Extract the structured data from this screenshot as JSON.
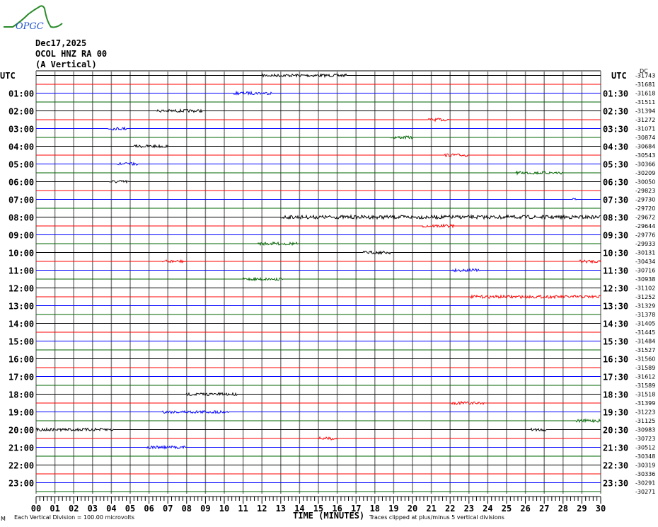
{
  "logo_text": "OPGC",
  "header": {
    "date": "Dec17,2025",
    "station": "OCOL HNZ RA 00",
    "component": "(A Vertical)"
  },
  "chart_data": {
    "type": "line",
    "subtype": "helicorder",
    "xlabel": "TIME (MINUTES)",
    "x_ticks": [
      "00",
      "01",
      "02",
      "03",
      "04",
      "05",
      "06",
      "07",
      "08",
      "09",
      "10",
      "11",
      "12",
      "13",
      "14",
      "15",
      "16",
      "17",
      "18",
      "19",
      "20",
      "21",
      "22",
      "23",
      "24",
      "25",
      "26",
      "27",
      "28",
      "29",
      "30"
    ],
    "xlim": [
      0,
      30
    ],
    "left_axis_title": "UTC",
    "right_axis_title": "UTC",
    "left_labels": [
      "01:00",
      "02:00",
      "03:00",
      "04:00",
      "05:00",
      "06:00",
      "07:00",
      "08:00",
      "09:00",
      "10:00",
      "11:00",
      "12:00",
      "13:00",
      "14:00",
      "15:00",
      "16:00",
      "17:00",
      "18:00",
      "19:00",
      "20:00",
      "21:00",
      "22:00",
      "23:00"
    ],
    "right_labels": [
      "01:30",
      "02:30",
      "03:30",
      "04:30",
      "05:30",
      "06:30",
      "07:30",
      "08:30",
      "09:30",
      "10:30",
      "11:30",
      "12:30",
      "13:30",
      "14:30",
      "15:30",
      "16:30",
      "17:30",
      "18:30",
      "19:30",
      "20:30",
      "21:30",
      "22:30",
      "23:30"
    ],
    "dc_label": "DC",
    "dc_offsets": [
      "-31743",
      "-31681",
      "-31618",
      "-31511",
      "-31394",
      "-31272",
      "-31071",
      "-30874",
      "-30684",
      "-30543",
      "-30366",
      "-30209",
      "-30050",
      "-29823",
      "-29730",
      "-29720",
      "-29672",
      "-29644",
      "-29776",
      "-29933",
      "-30131",
      "-30434",
      "-30716",
      "-30938",
      "-31102",
      "-31252",
      "-31329",
      "-31378",
      "-31405",
      "-31445",
      "-31484",
      "-31527",
      "-31560",
      "-31589",
      "-31612",
      "-31589",
      "-31518",
      "-31399",
      "-31223",
      "-31125",
      "-30983",
      "-30723",
      "-30512",
      "-30348",
      "-30319",
      "-30336",
      "-30291",
      "-30271"
    ],
    "trace_colors": [
      "#000000",
      "#ff0000",
      "#0000ff",
      "#006400"
    ],
    "grid": true,
    "events": [
      {
        "row": 0,
        "start": 12.0,
        "end": 16.5,
        "amp": 2
      },
      {
        "row": 2,
        "start": 10.5,
        "end": 12.5,
        "amp": 2
      },
      {
        "row": 4,
        "start": 6.4,
        "end": 8.8,
        "amp": 2
      },
      {
        "row": 5,
        "start": 20.8,
        "end": 22.0,
        "amp": 2
      },
      {
        "row": 6,
        "start": 3.8,
        "end": 4.8,
        "amp": 2
      },
      {
        "row": 7,
        "start": 18.8,
        "end": 20.0,
        "amp": 2
      },
      {
        "row": 8,
        "start": 5.2,
        "end": 7.0,
        "amp": 2
      },
      {
        "row": 9,
        "start": 21.7,
        "end": 22.9,
        "amp": 2
      },
      {
        "row": 10,
        "start": 4.3,
        "end": 5.4,
        "amp": 2
      },
      {
        "row": 11,
        "start": 25.5,
        "end": 28.0,
        "amp": 2
      },
      {
        "row": 12,
        "start": 3.9,
        "end": 4.9,
        "amp": 2
      },
      {
        "row": 14,
        "start": 28.5,
        "end": 28.7,
        "amp": 2
      },
      {
        "row": 16,
        "start": 13.0,
        "end": 30.0,
        "amp": 2.5
      },
      {
        "row": 17,
        "start": 20.5,
        "end": 22.2,
        "amp": 2
      },
      {
        "row": 19,
        "start": 11.8,
        "end": 13.9,
        "amp": 2
      },
      {
        "row": 20,
        "start": 17.4,
        "end": 18.8,
        "amp": 2
      },
      {
        "row": 21,
        "start": 6.7,
        "end": 8.0,
        "amp": 2
      },
      {
        "row": 21,
        "start": 28.9,
        "end": 30.0,
        "amp": 2
      },
      {
        "row": 22,
        "start": 22.1,
        "end": 23.6,
        "amp": 2
      },
      {
        "row": 23,
        "start": 11.0,
        "end": 13.1,
        "amp": 2
      },
      {
        "row": 25,
        "start": 23.1,
        "end": 30.0,
        "amp": 2
      },
      {
        "row": 36,
        "start": 8.0,
        "end": 10.7,
        "amp": 2
      },
      {
        "row": 37,
        "start": 22.1,
        "end": 23.8,
        "amp": 2
      },
      {
        "row": 38,
        "start": 6.7,
        "end": 10.3,
        "amp": 2
      },
      {
        "row": 39,
        "start": 28.7,
        "end": 30.0,
        "amp": 2
      },
      {
        "row": 40,
        "start": 0.0,
        "end": 4.1,
        "amp": 2
      },
      {
        "row": 40,
        "start": 26.3,
        "end": 27.1,
        "amp": 2
      },
      {
        "row": 41,
        "start": 15.0,
        "end": 16.0,
        "amp": 2
      },
      {
        "row": 42,
        "start": 5.9,
        "end": 7.9,
        "amp": 2
      }
    ]
  },
  "footer": {
    "left_mark": "M",
    "scale": "Each Vertical Division =  100.00 microvolts",
    "clip_note": "Traces clipped at plus/minus 5 vertical divisions"
  }
}
